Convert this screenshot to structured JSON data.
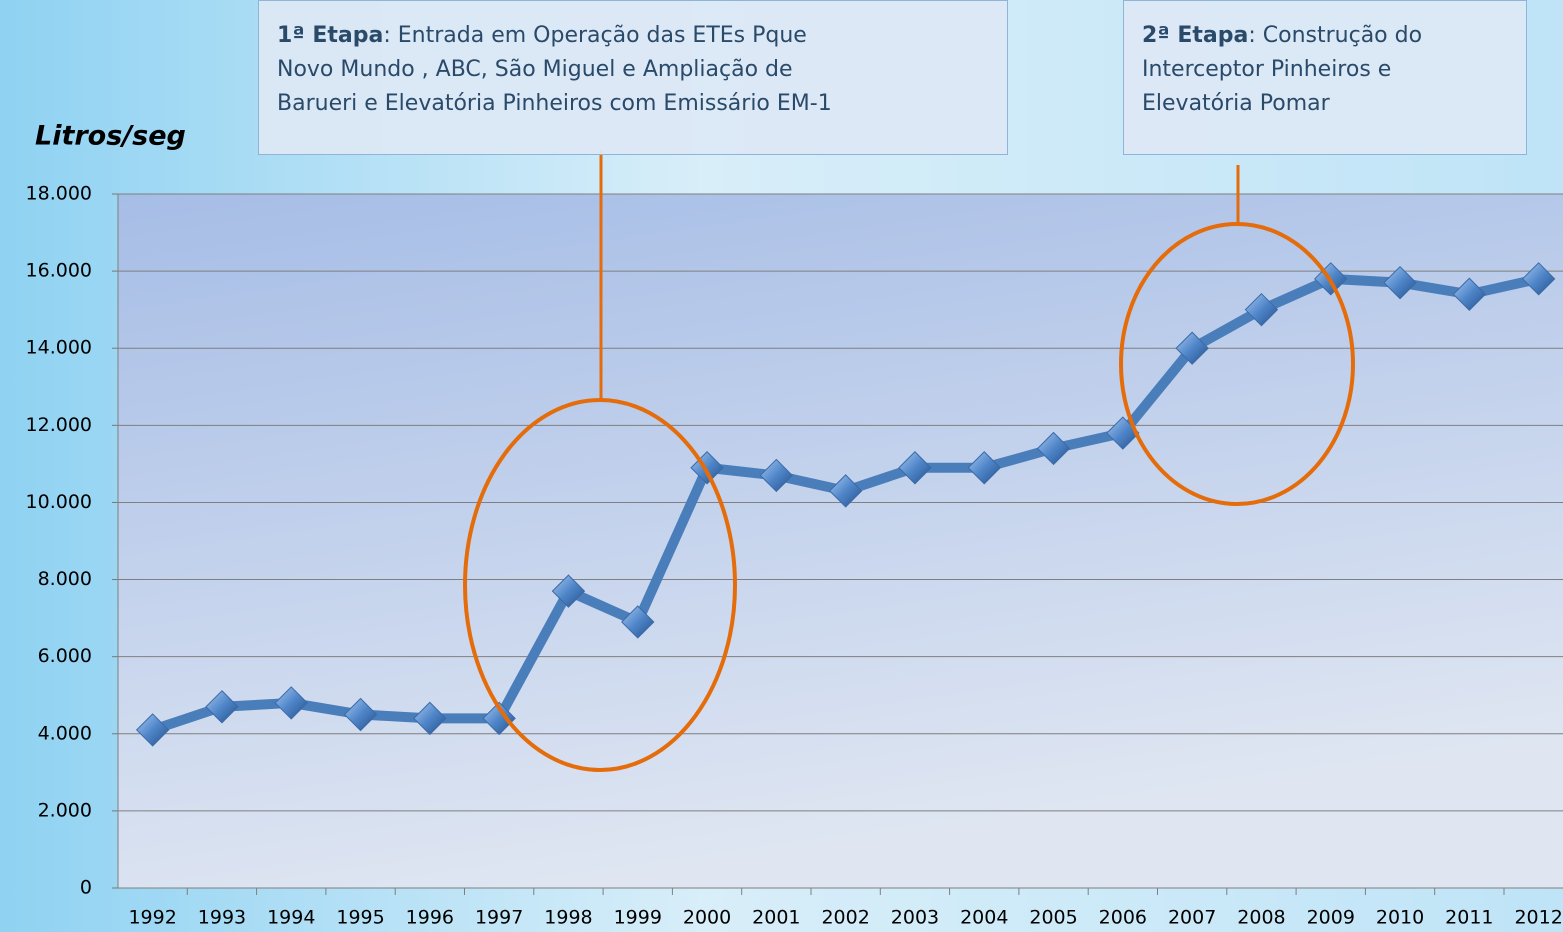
{
  "chart_data": {
    "type": "line",
    "y_axis_label": "Litros/seg",
    "annotations": [
      {
        "label": "1ª Etapa",
        "lines": [
          ": Entrada em Operação das ETEs Pque",
          "Novo Mundo , ABC, São Miguel e Ampliação de",
          "Barueri e Elevatória Pinheiros com Emissário EM-1"
        ]
      },
      {
        "label": "2ª Etapa",
        "lines": [
          ": Construção do",
          "Interceptor Pinheiros e",
          "Elevatória Pomar"
        ]
      }
    ],
    "categories": [
      "1992",
      "1993",
      "1994",
      "1995",
      "1996",
      "1997",
      "1998",
      "1999",
      "2000",
      "2001",
      "2002",
      "2003",
      "2004",
      "2005",
      "2006",
      "2007",
      "2008",
      "2009",
      "2010",
      "2011",
      "2012"
    ],
    "values": [
      4100,
      4700,
      4800,
      4500,
      4400,
      4400,
      7700,
      6900,
      10900,
      10700,
      10300,
      10900,
      10900,
      11400,
      11800,
      14000,
      15000,
      15800,
      15700,
      15400,
      15800
    ],
    "color": "#4a7ebb",
    "ylim": [
      0,
      18000
    ],
    "yticks": [
      0,
      {
        "value": 2000,
        "label": "2.000"
      },
      {
        "value": 4000,
        "label": "4.000"
      },
      {
        "value": 6000,
        "label": "6.000"
      },
      {
        "value": 8000,
        "label": "8.000"
      },
      {
        "value": 10000,
        "label": "10.000"
      },
      {
        "value": 12000,
        "label": "12.000"
      },
      {
        "value": 14000,
        "label": "14.000"
      },
      {
        "value": 16000,
        "label": "16.000"
      },
      {
        "value": 18000,
        "label": "18.000"
      }
    ],
    "grid": true
  }
}
